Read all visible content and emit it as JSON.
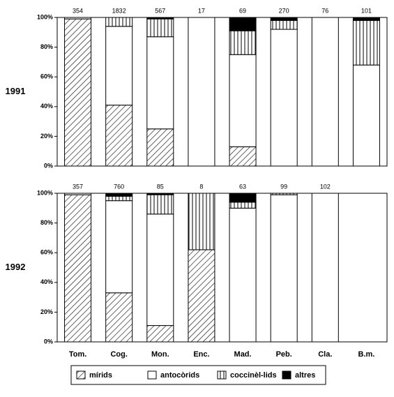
{
  "chart_data": [
    {
      "type": "bar",
      "stacked": true,
      "title": "1991",
      "bar_labels": [
        354,
        1832,
        567,
        17,
        69,
        270,
        76,
        101
      ],
      "ylim": [
        0,
        100
      ],
      "yticks": [
        {
          "value": 0,
          "label": "0%"
        },
        {
          "value": 20,
          "label": "20%"
        },
        {
          "value": 40,
          "label": "40%"
        },
        {
          "value": 60,
          "label": "60%"
        },
        {
          "value": 80,
          "label": "80%"
        },
        {
          "value": 100,
          "label": "100%"
        }
      ],
      "series": [
        {
          "pattern": "diagonal",
          "color": "#ffffff",
          "values": [
            99,
            41,
            25,
            0,
            13,
            0,
            0,
            0
          ]
        },
        {
          "pattern": "none",
          "color": "#ffffff",
          "values": [
            1,
            53,
            62,
            100,
            62,
            92,
            100,
            68
          ]
        },
        {
          "pattern": "vertical",
          "color": "#ffffff",
          "values": [
            0,
            6,
            12,
            0,
            16,
            6,
            0,
            30
          ]
        },
        {
          "pattern": "none",
          "color": "#000000",
          "values": [
            0,
            0,
            1,
            0,
            9,
            2,
            0,
            2
          ]
        }
      ]
    },
    {
      "type": "bar",
      "stacked": true,
      "title": "1992",
      "categories": [
        "Tom.",
        "Cog.",
        "Mon.",
        "Enc.",
        "Mad.",
        "Peb.",
        "Cla.",
        "B.m."
      ],
      "bar_labels": [
        357,
        760,
        85,
        8,
        63,
        99,
        102,
        null
      ],
      "ylim": [
        0,
        100
      ],
      "yticks": [
        {
          "value": 0,
          "label": "0%"
        },
        {
          "value": 20,
          "label": "20%"
        },
        {
          "value": 40,
          "label": "40%"
        },
        {
          "value": 60,
          "label": "60%"
        },
        {
          "value": 80,
          "label": "80%"
        },
        {
          "value": 100,
          "label": "100%"
        }
      ],
      "series": [
        {
          "name": "mírids",
          "pattern": "diagonal",
          "color": "#ffffff",
          "values": [
            99,
            33,
            11,
            62,
            0,
            0,
            0,
            0
          ]
        },
        {
          "name": "antocòrids",
          "pattern": "none",
          "color": "#ffffff",
          "values": [
            1,
            62,
            75,
            0,
            90,
            99,
            100,
            0
          ]
        },
        {
          "name": "coccinèl-lids",
          "pattern": "vertical",
          "color": "#ffffff",
          "values": [
            0,
            3,
            13,
            38,
            4,
            1,
            0,
            0
          ]
        },
        {
          "name": "altres",
          "pattern": "none",
          "color": "#000000",
          "values": [
            0,
            2,
            1,
            0,
            6,
            0,
            0,
            0
          ]
        }
      ]
    }
  ]
}
